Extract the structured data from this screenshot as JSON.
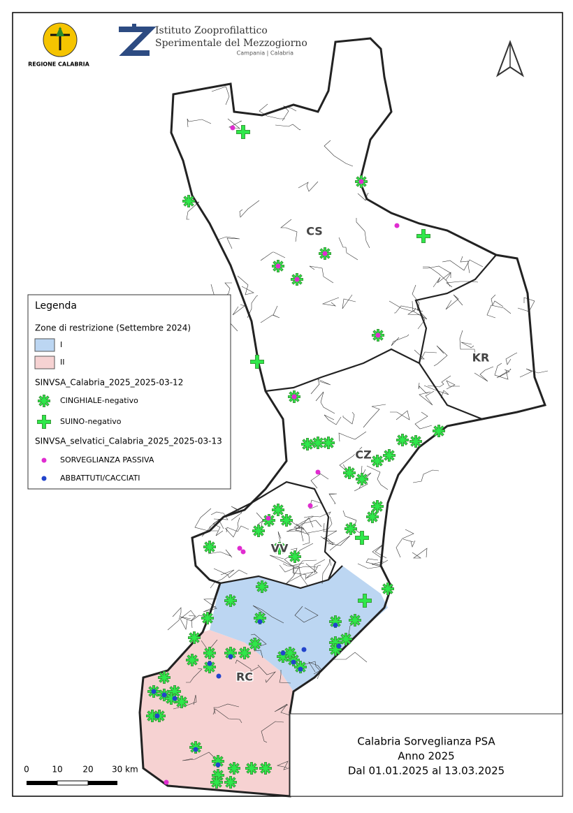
{
  "header": {
    "region_logo_label": "REGIONE CALABRIA",
    "institute_name_1": "Istituto Zooprofilattico",
    "institute_name_2": "Sperimentale del Mezzogiorno",
    "institute_sub": "Campania | Calabria"
  },
  "map": {
    "province_labels": [
      "CS",
      "KR",
      "CZ",
      "VV",
      "RC"
    ]
  },
  "legend": {
    "title": "Legenda",
    "groups": [
      {
        "title": "Zone di restrizione (Settembre 2024)",
        "items": [
          "I",
          "II"
        ]
      },
      {
        "title": "SINVSA_Calabria_2025_2025-03-12",
        "items": [
          "CINGHIALE-negativo",
          "SUINO-negativo"
        ]
      },
      {
        "title": "SINVSA_selvatici_Calabria_2025_2025-03-13",
        "items": [
          "SORVEGLIANZA PASSIVA",
          "ABBATTUTI/CACCIATI"
        ]
      }
    ]
  },
  "title_box": {
    "lines": [
      "Calabria Sorveglianza PSA",
      "Anno 2025",
      "Dal 01.01.2025 al 13.03.2025"
    ]
  },
  "scale_bar": {
    "labels": [
      "0",
      "10",
      "20",
      "30 km"
    ]
  }
}
